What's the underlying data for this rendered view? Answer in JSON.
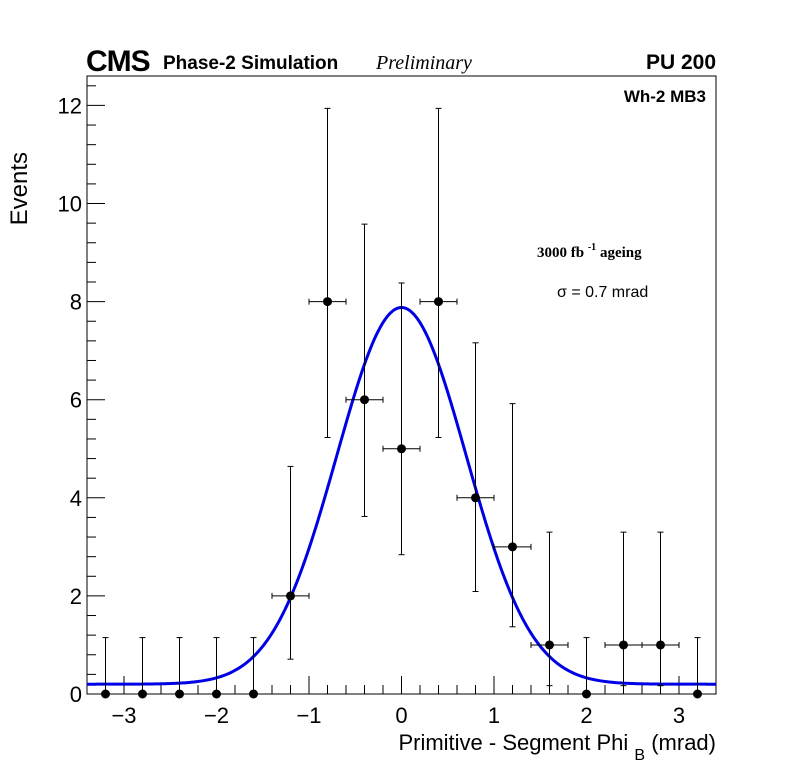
{
  "header": {
    "cms": "CMS",
    "simulation": "Phase-2 Simulation",
    "preliminary": "Preliminary",
    "pileup": "PU 200"
  },
  "chart_data": {
    "type": "scatter",
    "title": "",
    "xlabel": "Primitive - Segment Phi",
    "xlabel_sub": "B",
    "xlabel_unit": "(mrad)",
    "ylabel": "Events",
    "xlim": [
      -3.4,
      3.4
    ],
    "ylim": [
      0,
      12.6
    ],
    "x_ticks": [
      -3,
      -2,
      -1,
      0,
      1,
      2,
      3
    ],
    "x_tick_labels": [
      "−3",
      "−2",
      "−1",
      "0",
      "1",
      "2",
      "3"
    ],
    "y_ticks": [
      0,
      2,
      4,
      6,
      8,
      10,
      12
    ],
    "y_tick_labels": [
      "0",
      "2",
      "4",
      "6",
      "8",
      "10",
      "12"
    ],
    "bin_half_width": 0.2,
    "points": [
      {
        "x": -3.2,
        "y": 0,
        "err_low": 0,
        "err_high": 1.15
      },
      {
        "x": -2.8,
        "y": 0,
        "err_low": 0,
        "err_high": 1.15
      },
      {
        "x": -2.4,
        "y": 0,
        "err_low": 0,
        "err_high": 1.15
      },
      {
        "x": -2.0,
        "y": 0,
        "err_low": 0,
        "err_high": 1.15
      },
      {
        "x": -1.6,
        "y": 0,
        "err_low": 0,
        "err_high": 1.15
      },
      {
        "x": -1.2,
        "y": 2,
        "err_low": 1.29,
        "err_high": 2.64
      },
      {
        "x": -0.8,
        "y": 8,
        "err_low": 2.77,
        "err_high": 3.94
      },
      {
        "x": -0.4,
        "y": 6,
        "err_low": 2.38,
        "err_high": 3.58
      },
      {
        "x": 0.0,
        "y": 5,
        "err_low": 2.16,
        "err_high": 3.38
      },
      {
        "x": 0.4,
        "y": 8,
        "err_low": 2.77,
        "err_high": 3.94
      },
      {
        "x": 0.8,
        "y": 4,
        "err_low": 1.91,
        "err_high": 3.16
      },
      {
        "x": 1.2,
        "y": 3,
        "err_low": 1.63,
        "err_high": 2.92
      },
      {
        "x": 1.6,
        "y": 1,
        "err_low": 0.83,
        "err_high": 2.3
      },
      {
        "x": 2.0,
        "y": 0,
        "err_low": 0,
        "err_high": 1.15
      },
      {
        "x": 2.4,
        "y": 1,
        "err_low": 0.83,
        "err_high": 2.3
      },
      {
        "x": 2.8,
        "y": 1,
        "err_low": 0.83,
        "err_high": 2.3
      },
      {
        "x": 3.2,
        "y": 0,
        "err_low": 0,
        "err_high": 1.15
      }
    ],
    "fit": {
      "function": "gaussian",
      "amplitude": 7.68,
      "mean": 0.0,
      "sigma": 0.7,
      "baseline": 0.2,
      "color": "#0000e6",
      "label": "σ = 0.7 mrad"
    },
    "annotations": {
      "region": "Wh-2 MB3",
      "luminosity_prefix": "3000 fb",
      "luminosity_sup": "-1",
      "luminosity_suffix": " ageing"
    }
  }
}
